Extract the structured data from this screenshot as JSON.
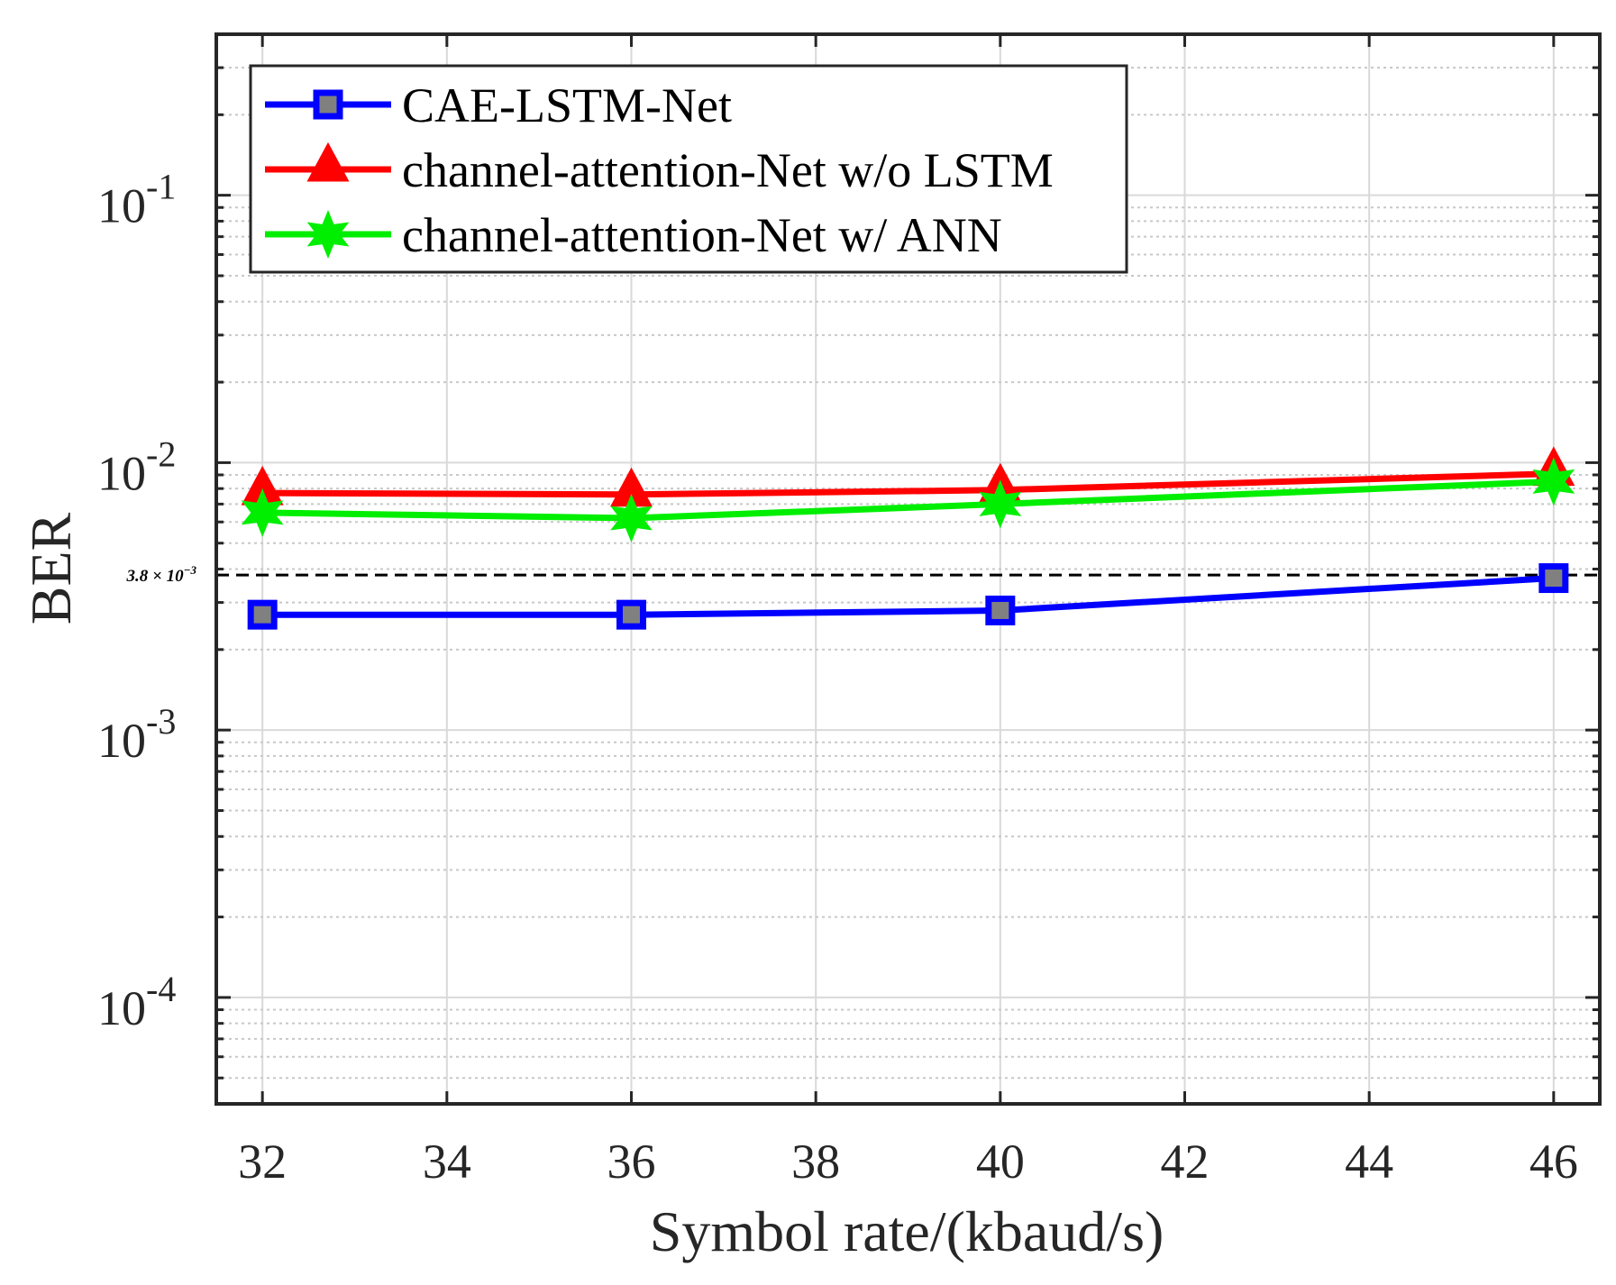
{
  "chart_data": {
    "type": "line",
    "title": "",
    "xlabel": "Symbol rate/(kbaud/s)",
    "ylabel": "BER",
    "xlim": [
      31.5,
      46.5
    ],
    "ylim": [
      4e-05,
      0.4
    ],
    "yscale": "log",
    "grid": true,
    "x_ticks": [
      "32",
      "34",
      "36",
      "38",
      "40",
      "42",
      "44",
      "46"
    ],
    "y_ticks": [
      {
        "base": "10",
        "exp": "-1",
        "value": 0.1
      },
      {
        "base": "10",
        "exp": "-2",
        "value": 0.01
      },
      {
        "base": "10",
        "exp": "-3",
        "value": 0.001
      },
      {
        "base": "10",
        "exp": "-4",
        "value": 0.0001
      }
    ],
    "legend_position": "top-left",
    "series": [
      {
        "name": "CAE-LSTM-Net",
        "color": "#0000ff",
        "marker": "square",
        "x": [
          32,
          36,
          40,
          46
        ],
        "y": [
          0.0027,
          0.0027,
          0.0028,
          0.0037
        ]
      },
      {
        "name": "channel-attention-Net w/o LSTM",
        "color": "#ff0000",
        "marker": "triangle",
        "x": [
          32,
          36,
          40,
          46
        ],
        "y": [
          0.0077,
          0.0076,
          0.0079,
          0.0091
        ]
      },
      {
        "name": "channel-attention-Net w/ ANN",
        "color": "#00ee00",
        "marker": "star",
        "x": [
          32,
          36,
          40,
          46
        ],
        "y": [
          0.0065,
          0.0062,
          0.007,
          0.0085
        ]
      }
    ],
    "reference_line": {
      "value": 0.0038,
      "label": "3.8 × 10",
      "label_exp": "−3",
      "style": "dashed",
      "color": "#000000"
    }
  }
}
